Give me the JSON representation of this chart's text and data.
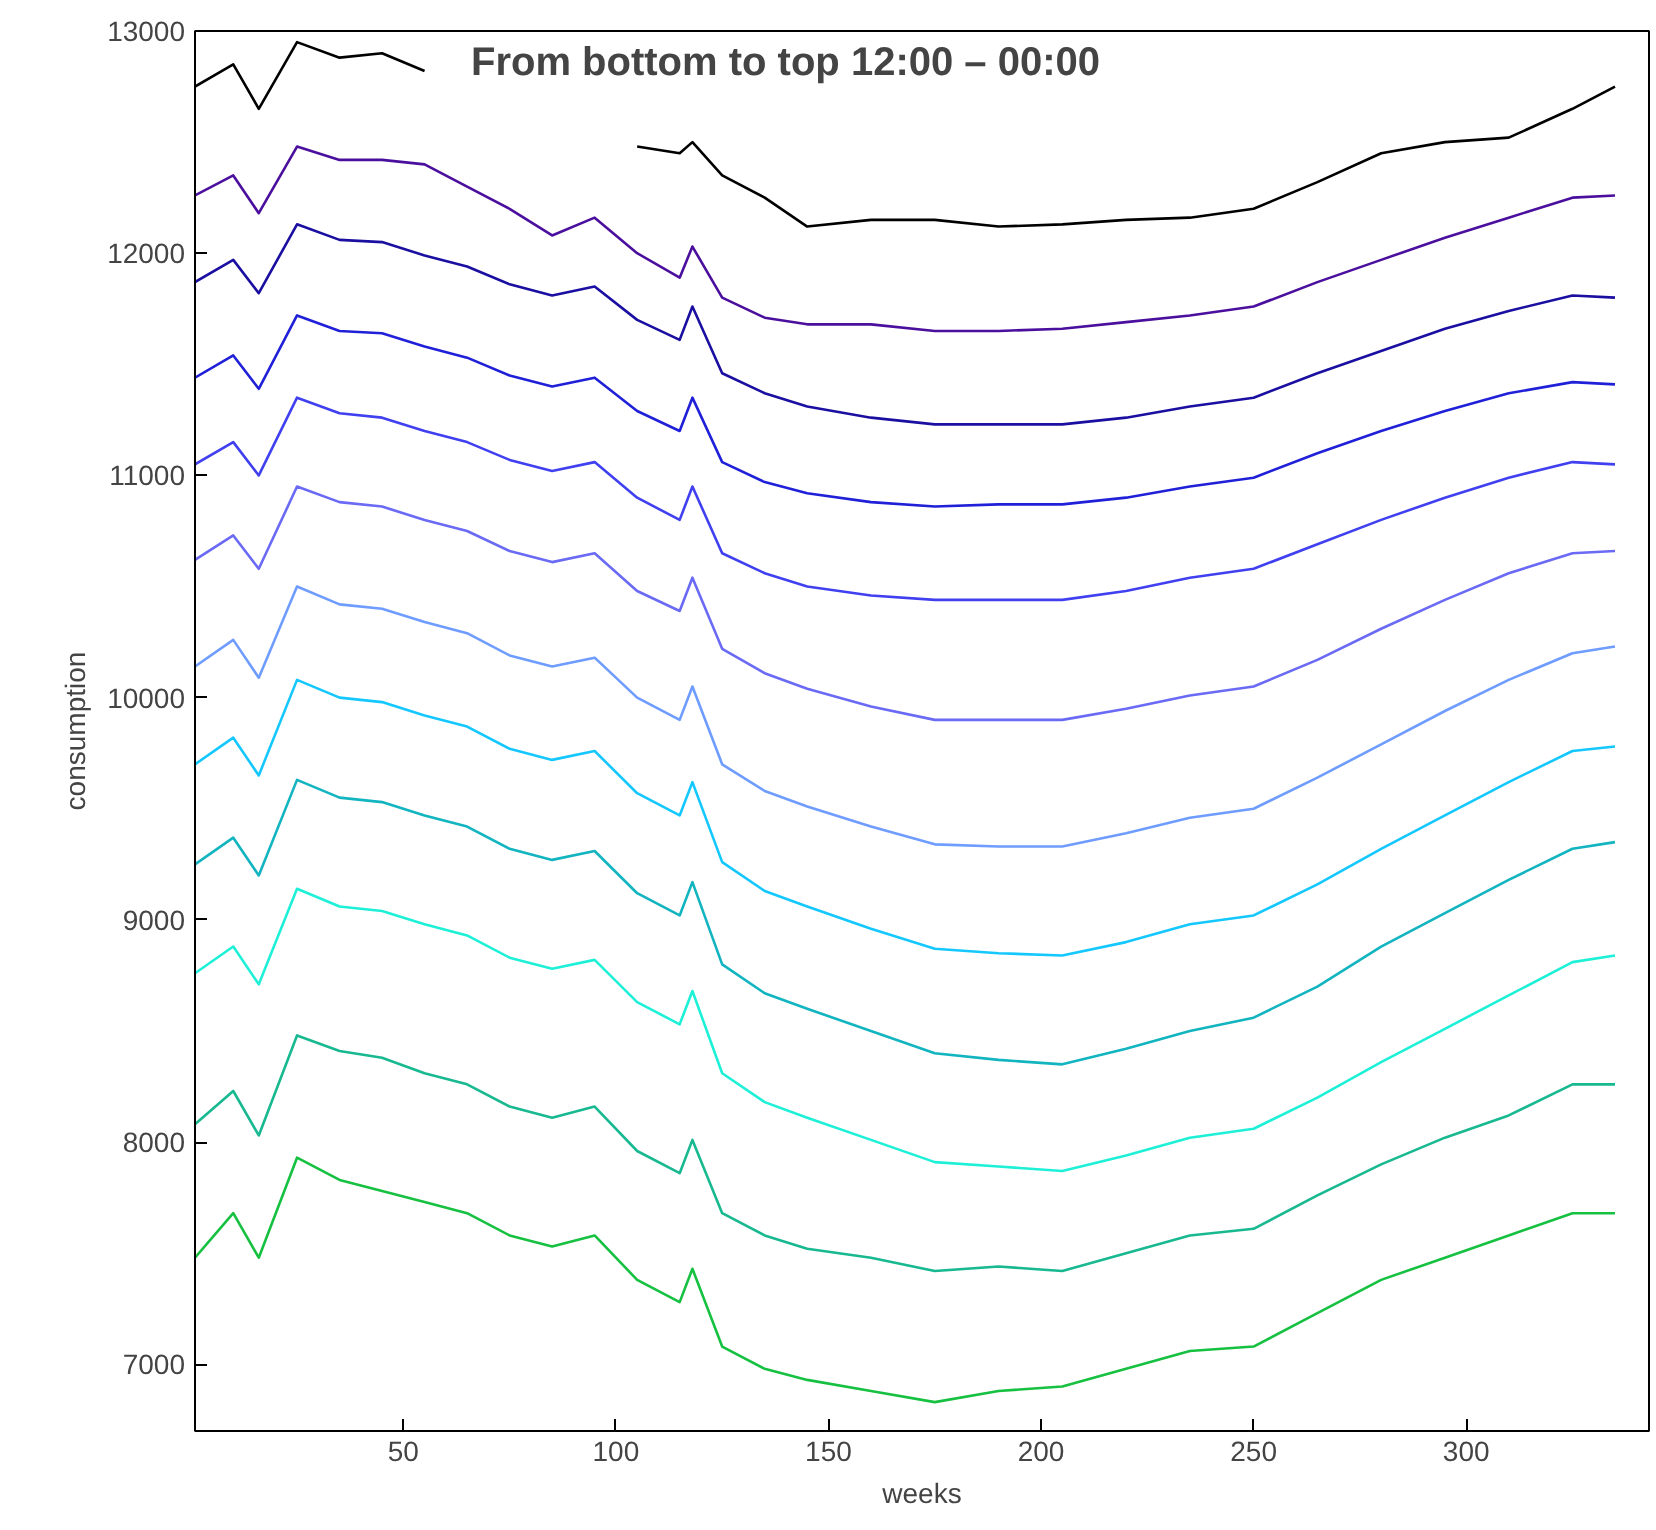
{
  "chart_data": {
    "type": "line",
    "title": "From bottom to top 12:00 – 00:00",
    "xlabel": "weeks",
    "ylabel": "consumption",
    "x": [
      1,
      10,
      16,
      25,
      35,
      45,
      55,
      65,
      75,
      85,
      95,
      105,
      115,
      118,
      125,
      135,
      145,
      160,
      175,
      190,
      205,
      220,
      235,
      250,
      265,
      280,
      295,
      310,
      325,
      335
    ],
    "xlim": [
      1,
      343
    ],
    "ylim": [
      6700,
      13000
    ],
    "xticks": [
      50,
      100,
      150,
      200,
      250,
      300
    ],
    "yticks": [
      7000,
      8000,
      9000,
      10000,
      11000,
      12000,
      13000
    ],
    "series": [
      {
        "color": "#16c040",
        "values": [
          7480,
          7680,
          7480,
          7930,
          7830,
          7780,
          7730,
          7680,
          7580,
          7530,
          7580,
          7380,
          7280,
          7430,
          7080,
          6980,
          6930,
          6880,
          6830,
          6880,
          6900,
          6980,
          7060,
          7080,
          7230,
          7380,
          7480,
          7580,
          7680,
          7680
        ]
      },
      {
        "color": "#18b890",
        "values": [
          8080,
          8230,
          8030,
          8480,
          8410,
          8380,
          8310,
          8260,
          8160,
          8110,
          8160,
          7960,
          7860,
          8010,
          7680,
          7580,
          7520,
          7480,
          7420,
          7440,
          7420,
          7500,
          7580,
          7610,
          7760,
          7900,
          8020,
          8120,
          8260,
          8260
        ]
      },
      {
        "color": "#1ef0d8",
        "values": [
          8760,
          8880,
          8710,
          9140,
          9060,
          9040,
          8980,
          8930,
          8830,
          8780,
          8820,
          8630,
          8530,
          8680,
          8310,
          8180,
          8110,
          8010,
          7910,
          7890,
          7870,
          7940,
          8020,
          8060,
          8200,
          8360,
          8510,
          8660,
          8810,
          8840
        ]
      },
      {
        "color": "#12b4c0",
        "values": [
          9250,
          9370,
          9200,
          9630,
          9550,
          9530,
          9470,
          9420,
          9320,
          9270,
          9310,
          9120,
          9020,
          9170,
          8800,
          8670,
          8600,
          8500,
          8400,
          8370,
          8350,
          8420,
          8500,
          8560,
          8700,
          8880,
          9030,
          9180,
          9320,
          9350
        ]
      },
      {
        "color": "#14c8ff",
        "values": [
          9700,
          9820,
          9650,
          10080,
          10000,
          9980,
          9920,
          9870,
          9770,
          9720,
          9760,
          9570,
          9470,
          9620,
          9260,
          9130,
          9060,
          8960,
          8870,
          8850,
          8840,
          8900,
          8980,
          9020,
          9160,
          9320,
          9470,
          9620,
          9760,
          9780
        ]
      },
      {
        "color": "#6f9cff",
        "values": [
          10140,
          10260,
          10090,
          10500,
          10420,
          10400,
          10340,
          10290,
          10190,
          10140,
          10180,
          10000,
          9900,
          10050,
          9700,
          9580,
          9510,
          9420,
          9340,
          9330,
          9330,
          9390,
          9460,
          9500,
          9640,
          9790,
          9940,
          10080,
          10200,
          10230
        ]
      },
      {
        "color": "#6a6af5",
        "values": [
          10620,
          10730,
          10580,
          10950,
          10880,
          10860,
          10800,
          10750,
          10660,
          10610,
          10650,
          10480,
          10390,
          10540,
          10220,
          10110,
          10040,
          9960,
          9900,
          9900,
          9900,
          9950,
          10010,
          10050,
          10170,
          10310,
          10440,
          10560,
          10650,
          10660
        ]
      },
      {
        "color": "#4040f0",
        "values": [
          11050,
          11150,
          11000,
          11350,
          11280,
          11260,
          11200,
          11150,
          11070,
          11020,
          11060,
          10900,
          10800,
          10950,
          10650,
          10560,
          10500,
          10460,
          10440,
          10440,
          10440,
          10480,
          10540,
          10580,
          10690,
          10800,
          10900,
          10990,
          11060,
          11050
        ]
      },
      {
        "color": "#2020d8",
        "values": [
          11440,
          11540,
          11390,
          11720,
          11650,
          11640,
          11580,
          11530,
          11450,
          11400,
          11440,
          11290,
          11200,
          11350,
          11060,
          10970,
          10920,
          10880,
          10860,
          10870,
          10870,
          10900,
          10950,
          10990,
          11100,
          11200,
          11290,
          11370,
          11420,
          11410
        ]
      },
      {
        "color": "#1a0fa0",
        "values": [
          11870,
          11970,
          11820,
          12130,
          12060,
          12050,
          11990,
          11940,
          11860,
          11810,
          11850,
          11700,
          11610,
          11760,
          11460,
          11370,
          11310,
          11260,
          11230,
          11230,
          11230,
          11260,
          11310,
          11350,
          11460,
          11560,
          11660,
          11740,
          11810,
          11800
        ]
      },
      {
        "color": "#4b0f9e",
        "values": [
          12260,
          12350,
          12180,
          12480,
          12420,
          12420,
          12400,
          12300,
          12200,
          12080,
          12160,
          12000,
          11890,
          12030,
          11800,
          11710,
          11680,
          11680,
          11650,
          11650,
          11660,
          11690,
          11720,
          11760,
          11870,
          11970,
          12070,
          12160,
          12250,
          12260
        ]
      },
      {
        "color": "#000000",
        "values": [
          12750,
          12850,
          12650,
          12950,
          12880,
          12900,
          12820,
          null,
          null,
          null,
          null,
          12480,
          12450,
          12500,
          12350,
          12250,
          12120,
          12150,
          12150,
          12120,
          12130,
          12150,
          12160,
          12200,
          12320,
          12450,
          12500,
          12520,
          12650,
          12750
        ]
      }
    ]
  }
}
